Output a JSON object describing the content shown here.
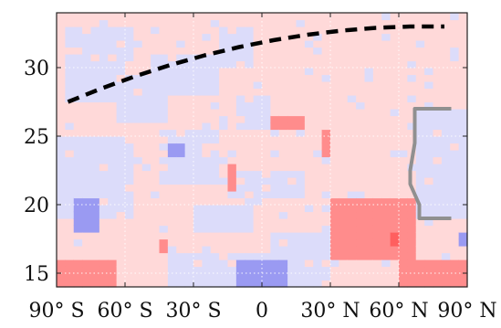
{
  "chart_data": {
    "type": "heatmap",
    "title": "",
    "xlabel": "",
    "ylabel": "",
    "xlim": [
      -90,
      90
    ],
    "ylim": [
      14,
      34
    ],
    "grid": true,
    "x_tick_labels": [
      {
        "value": -90,
        "label": "90° S"
      },
      {
        "value": -60,
        "label": "60° S"
      },
      {
        "value": -30,
        "label": "30° S"
      },
      {
        "value": 0,
        "label": "0"
      },
      {
        "value": 30,
        "label": "30° N"
      },
      {
        "value": 60,
        "label": "60° N"
      },
      {
        "value": 90,
        "label": "90° N"
      }
    ],
    "y_ticks": [
      15,
      20,
      25,
      30
    ],
    "colors": {
      "light_red": "#ffd9d9",
      "light_blue": "#dcdcfa",
      "medium_red": "#ff8c8c",
      "medium_blue": "#9a9af2",
      "dark_red": "#ff5f5f",
      "strong_blue": "#6f6fe8",
      "dashed_line": "#000000",
      "gray_line": "#909090"
    },
    "cell_size": {
      "dx": 3.75,
      "dy": 0.5
    },
    "background_value": "light_red",
    "patches": [
      {
        "x": [
          -85,
          -55
        ],
        "y": [
          27.5,
          33
        ],
        "value": "light_blue"
      },
      {
        "x": [
          -65,
          -40
        ],
        "y": [
          26,
          29.5
        ],
        "value": "light_blue"
      },
      {
        "x": [
          -50,
          -20
        ],
        "y": [
          28,
          31
        ],
        "value": "light_blue"
      },
      {
        "x": [
          -20,
          -5
        ],
        "y": [
          30,
          33
        ],
        "value": "light_blue"
      },
      {
        "x": [
          -10,
          5
        ],
        "y": [
          25.5,
          28
        ],
        "value": "light_blue"
      },
      {
        "x": [
          -90,
          -55
        ],
        "y": [
          19,
          25
        ],
        "value": "light_blue"
      },
      {
        "x": [
          -45,
          -20
        ],
        "y": [
          21.5,
          25.5
        ],
        "value": "light_blue"
      },
      {
        "x": [
          -15,
          20
        ],
        "y": [
          20.5,
          22.5
        ],
        "value": "light_blue"
      },
      {
        "x": [
          -30,
          -5
        ],
        "y": [
          18,
          20
        ],
        "value": "light_blue"
      },
      {
        "x": [
          -40,
          25
        ],
        "y": [
          14,
          16.5
        ],
        "value": "light_blue"
      },
      {
        "x": [
          5,
          30
        ],
        "y": [
          16,
          18
        ],
        "value": "light_blue"
      },
      {
        "x": [
          67,
          90
        ],
        "y": [
          19,
          27
        ],
        "value": "light_blue"
      },
      {
        "x": [
          -82,
          -72
        ],
        "y": [
          18,
          20.5
        ],
        "value": "medium_blue"
      },
      {
        "x": [
          -40,
          -35
        ],
        "y": [
          23.5,
          24.5
        ],
        "value": "medium_blue"
      },
      {
        "x": [
          -10,
          10
        ],
        "y": [
          14,
          16
        ],
        "value": "medium_blue"
      },
      {
        "x": [
          87,
          90
        ],
        "y": [
          17,
          18
        ],
        "value": "medium_blue"
      },
      {
        "x": [
          5,
          20
        ],
        "y": [
          25.5,
          26.5
        ],
        "value": "medium_red"
      },
      {
        "x": [
          25,
          30
        ],
        "y": [
          23.5,
          25.5
        ],
        "value": "medium_red"
      },
      {
        "x": [
          -15,
          -10
        ],
        "y": [
          21,
          23
        ],
        "value": "medium_red"
      },
      {
        "x": [
          -45,
          -40
        ],
        "y": [
          16.5,
          17.5
        ],
        "value": "medium_red"
      },
      {
        "x": [
          30,
          50
        ],
        "y": [
          20,
          20.5
        ],
        "value": "medium_red"
      },
      {
        "x": [
          30,
          66
        ],
        "y": [
          16,
          20.5
        ],
        "value": "medium_red"
      },
      {
        "x": [
          -90,
          -65
        ],
        "y": [
          14,
          16
        ],
        "value": "medium_red"
      },
      {
        "x": [
          60,
          90
        ],
        "y": [
          14,
          16
        ],
        "value": "medium_red"
      },
      {
        "x": [
          57,
          60
        ],
        "y": [
          17,
          18
        ],
        "value": "dark_red"
      }
    ],
    "series": [
      {
        "style": "dashed",
        "color": "dashed_line",
        "x": [
          -85,
          -70,
          -55,
          -40,
          -25,
          -10,
          5,
          20,
          35,
          50,
          65,
          75,
          80
        ],
        "y": [
          27.5,
          28.5,
          29.4,
          30.2,
          30.9,
          31.5,
          32.0,
          32.4,
          32.7,
          32.9,
          33.0,
          33.0,
          33.0
        ]
      },
      {
        "style": "solid",
        "color": "gray_line",
        "x": [
          83,
          67,
          67,
          65,
          65,
          69,
          69,
          83
        ],
        "y": [
          27,
          27,
          24.5,
          22.5,
          21.5,
          20,
          19,
          19
        ]
      }
    ]
  }
}
